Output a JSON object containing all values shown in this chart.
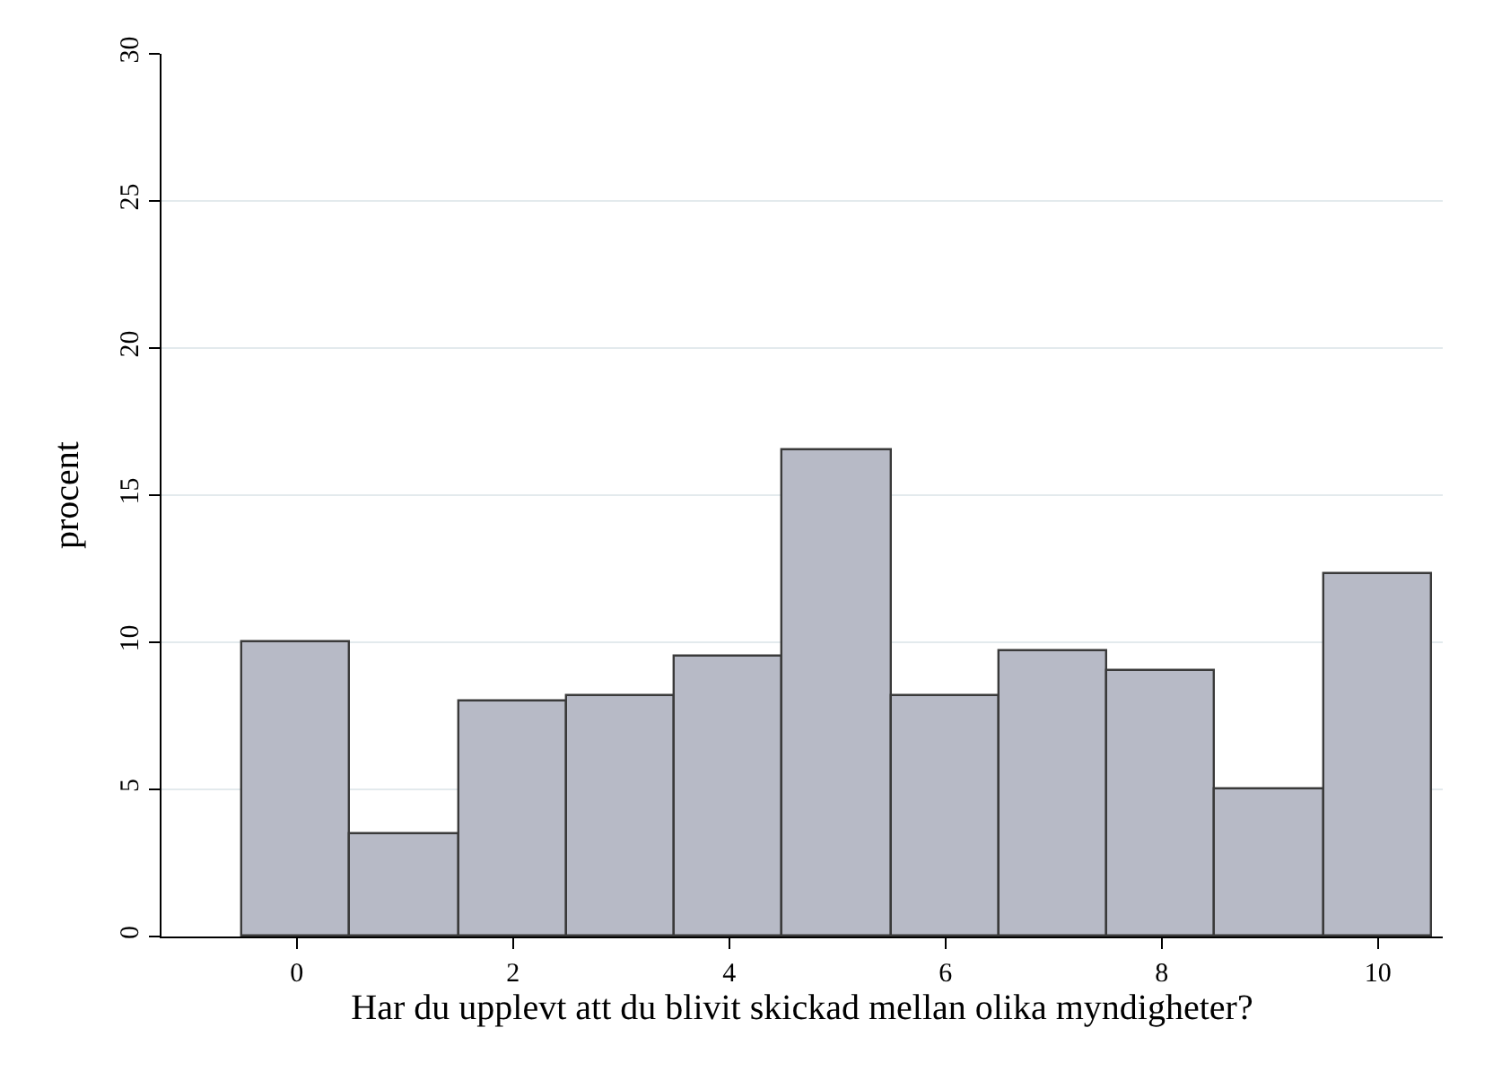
{
  "chart_data": {
    "type": "histogram",
    "xlabel": "Har du upplevt att du blivit skickad mellan olika myndigheter?",
    "ylabel": "procent",
    "bins": [
      -0.5,
      0.5,
      1.5,
      2.5,
      3.5,
      4.5,
      5.5,
      6.5,
      7.5,
      8.5,
      9.5,
      10.5
    ],
    "values": [
      10.0,
      3.5,
      8.0,
      8.2,
      9.5,
      16.5,
      8.2,
      9.7,
      9.0,
      5.0,
      12.3
    ],
    "color": "#b7bac6",
    "xlim": [
      -1.25,
      10.6
    ],
    "xticks": [
      0,
      2,
      4,
      6,
      8,
      10
    ],
    "ylim": [
      0,
      30
    ],
    "yticks": [
      0,
      5,
      10,
      15,
      20,
      25,
      30
    ],
    "grid": "y"
  }
}
